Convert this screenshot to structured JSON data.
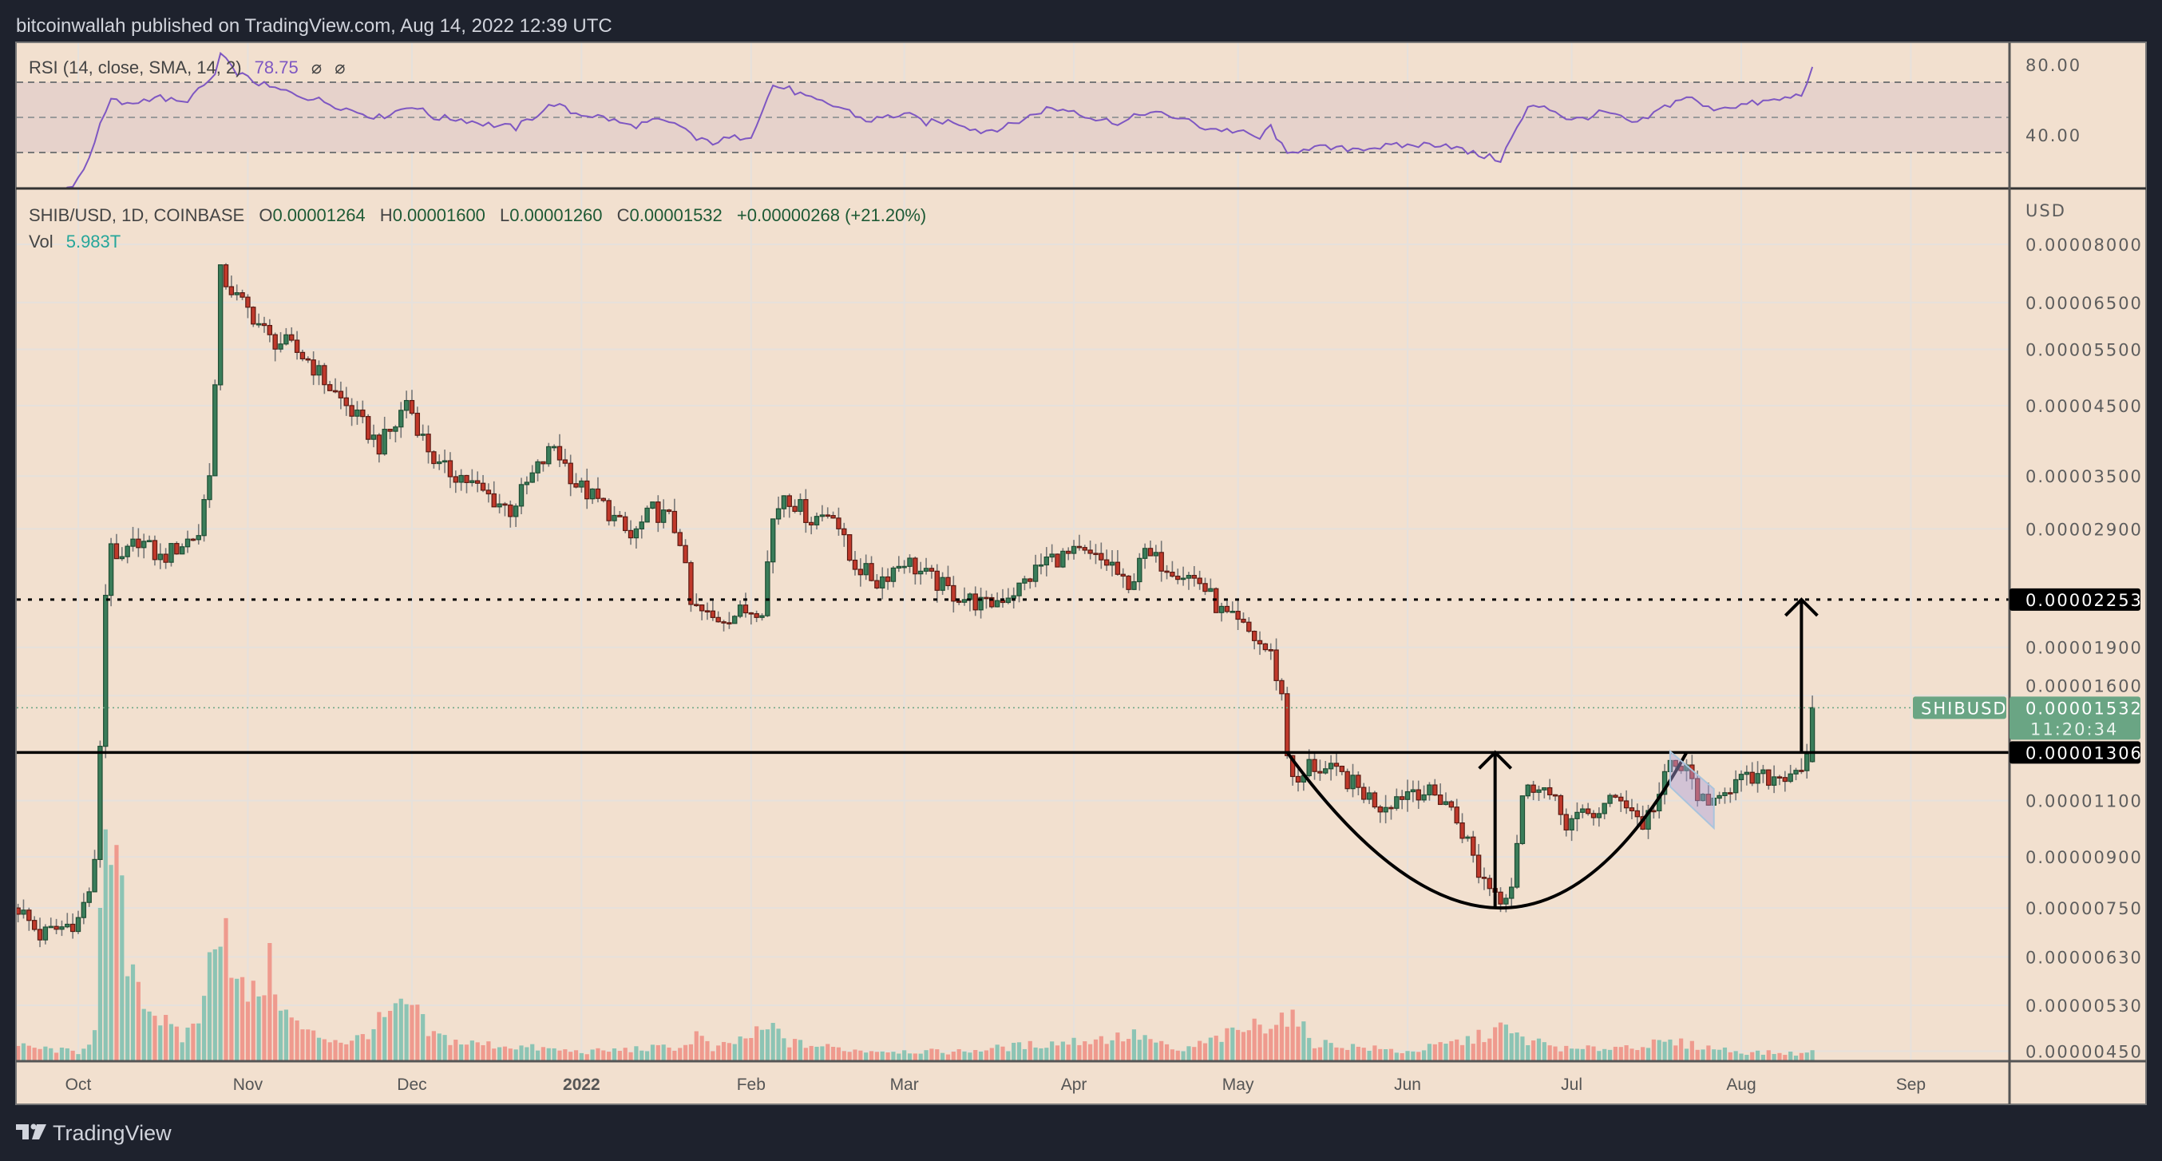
{
  "header": {
    "published": "bitcoinwallah published on TradingView.com, Aug 14, 2022 12:39 UTC"
  },
  "footer": {
    "brand": "TradingView"
  },
  "rsi": {
    "label": "RSI (14, close, SMA, 14, 2)",
    "value": "78.75",
    "extra1": "⌀",
    "extra2": "⌀",
    "ticks": [
      "80.00",
      "40.00"
    ],
    "tick_values": [
      80,
      40
    ],
    "bands": [
      70,
      50,
      30
    ],
    "line_color": "#7e57c2",
    "anchors": [
      [
        "2021-09-27",
        5
      ],
      [
        "2021-09-30",
        12
      ],
      [
        "2021-10-02",
        20
      ],
      [
        "2021-10-05",
        45
      ],
      [
        "2021-10-07",
        60
      ],
      [
        "2021-10-10",
        57
      ],
      [
        "2021-10-15",
        62
      ],
      [
        "2021-10-20",
        58
      ],
      [
        "2021-10-23",
        65
      ],
      [
        "2021-10-26",
        74
      ],
      [
        "2021-10-27",
        86
      ],
      [
        "2021-10-29",
        78
      ],
      [
        "2021-11-01",
        72
      ],
      [
        "2021-11-05",
        67
      ],
      [
        "2021-11-10",
        63
      ],
      [
        "2021-11-15",
        59
      ],
      [
        "2021-11-20",
        54
      ],
      [
        "2021-11-25",
        50
      ],
      [
        "2021-12-01",
        57
      ],
      [
        "2021-12-05",
        50
      ],
      [
        "2021-12-10",
        49
      ],
      [
        "2021-12-15",
        46
      ],
      [
        "2021-12-20",
        44
      ],
      [
        "2021-12-27",
        58
      ],
      [
        "2021-12-30",
        53
      ],
      [
        "2022-01-05",
        50
      ],
      [
        "2022-01-10",
        45
      ],
      [
        "2022-01-15",
        48
      ],
      [
        "2022-01-20",
        44
      ],
      [
        "2022-01-22",
        37
      ],
      [
        "2022-01-25",
        36
      ],
      [
        "2022-02-01",
        40
      ],
      [
        "2022-02-05",
        68
      ],
      [
        "2022-02-08",
        66
      ],
      [
        "2022-02-12",
        60
      ],
      [
        "2022-02-18",
        55
      ],
      [
        "2022-02-22",
        48
      ],
      [
        "2022-03-01",
        52
      ],
      [
        "2022-03-05",
        47
      ],
      [
        "2022-03-10",
        48
      ],
      [
        "2022-03-15",
        42
      ],
      [
        "2022-03-20",
        45
      ],
      [
        "2022-03-27",
        55
      ],
      [
        "2022-04-01",
        54
      ],
      [
        "2022-04-05",
        49
      ],
      [
        "2022-04-10",
        47
      ],
      [
        "2022-04-14",
        53
      ],
      [
        "2022-04-20",
        50
      ],
      [
        "2022-04-25",
        44
      ],
      [
        "2022-05-01",
        42
      ],
      [
        "2022-05-05",
        38
      ],
      [
        "2022-05-07",
        45
      ],
      [
        "2022-05-10",
        28
      ],
      [
        "2022-05-13",
        33
      ],
      [
        "2022-05-20",
        32
      ],
      [
        "2022-06-01",
        34
      ],
      [
        "2022-06-08",
        35
      ],
      [
        "2022-06-12",
        30
      ],
      [
        "2022-06-18",
        26
      ],
      [
        "2022-06-20",
        38
      ],
      [
        "2022-06-23",
        55
      ],
      [
        "2022-06-26",
        57
      ],
      [
        "2022-07-01",
        48
      ],
      [
        "2022-07-07",
        53
      ],
      [
        "2022-07-13",
        46
      ],
      [
        "2022-07-18",
        56
      ],
      [
        "2022-07-22",
        62
      ],
      [
        "2022-07-26",
        55
      ],
      [
        "2022-08-01",
        57
      ],
      [
        "2022-08-08",
        60
      ],
      [
        "2022-08-12",
        63
      ],
      [
        "2022-08-14",
        78.75
      ]
    ]
  },
  "legend": {
    "symbol": "SHIB/USD, 1D, COINBASE",
    "open_label": "O",
    "open": "0.00001264",
    "high_label": "H",
    "high": "0.00001600",
    "low_label": "L",
    "low": "0.00001260",
    "close_label": "C",
    "close": "0.00001532",
    "change": "+0.00000268 (+21.20%)",
    "vol_label": "Vol",
    "vol": "5.983T"
  },
  "price_axis": {
    "currency": "USD",
    "ticks": [
      "0.00008000",
      "0.00006500",
      "0.00005500",
      "0.00004500",
      "0.00003500",
      "0.00002900",
      "0.00001900",
      "0.00001600",
      "0.00001100",
      "0.00000900",
      "0.00000750",
      "0.00000630",
      "0.00000530",
      "0.00000450"
    ],
    "level_upper": "0.00002253",
    "level_lower": "0.00001306",
    "last_price": "0.00001532",
    "countdown": "11:20:34",
    "symbol_tag": "SHIBUSD"
  },
  "time_axis": {
    "months": [
      [
        "2021-10-01",
        "Oct"
      ],
      [
        "2021-11-01",
        "Nov"
      ],
      [
        "2021-12-01",
        "Dec"
      ],
      [
        "2022-01-01",
        "2022"
      ],
      [
        "2022-02-01",
        "Feb"
      ],
      [
        "2022-03-01",
        "Mar"
      ],
      [
        "2022-04-01",
        "Apr"
      ],
      [
        "2022-05-01",
        "May"
      ],
      [
        "2022-06-01",
        "Jun"
      ],
      [
        "2022-07-01",
        "Jul"
      ],
      [
        "2022-08-01",
        "Aug"
      ],
      [
        "2022-09-01",
        "Sep"
      ]
    ]
  },
  "colors": {
    "background": "#f2e0cf",
    "frame": "#1e222d",
    "up": "#3a7d5a",
    "up_border": "#1e4d33",
    "down": "#c0392b",
    "down_border": "#5a1a12",
    "vol_up": "#8cc4b4",
    "vol_down": "#ef9a8e",
    "last_price": "#6aa584",
    "rsi_band": "#e6d2cb"
  },
  "chart_data": {
    "type": "candlestick",
    "title": "SHIB/USD, 1D, COINBASE",
    "ylabel": "USD",
    "yscale": "log",
    "ylim": [
      4.2e-06,
      9.2e-05
    ],
    "xlim": [
      "2021-09-20",
      "2022-09-14"
    ],
    "close_anchors": [
      [
        "2021-09-20",
        7.5e-06
      ],
      [
        "2021-09-24",
        6.8e-06
      ],
      [
        "2021-09-28",
        7e-06
      ],
      [
        "2021-10-01",
        7.2e-06
      ],
      [
        "2021-10-03",
        8e-06
      ],
      [
        "2021-10-04",
        8.7e-06
      ],
      [
        "2021-10-05",
        1.35e-05
      ],
      [
        "2021-10-06",
        2.3e-05
      ],
      [
        "2021-10-07",
        2.8e-05
      ],
      [
        "2021-10-08",
        2.52e-05
      ],
      [
        "2021-10-12",
        2.8e-05
      ],
      [
        "2021-10-16",
        2.6e-05
      ],
      [
        "2021-10-20",
        2.75e-05
      ],
      [
        "2021-10-23",
        2.85e-05
      ],
      [
        "2021-10-25",
        3.6e-05
      ],
      [
        "2021-10-26",
        4.8e-05
      ],
      [
        "2021-10-27",
        7.2e-05
      ],
      [
        "2021-10-28",
        7e-05
      ],
      [
        "2021-10-30",
        6.6e-05
      ],
      [
        "2021-11-02",
        6.2e-05
      ],
      [
        "2021-11-05",
        5.7e-05
      ],
      [
        "2021-11-08",
        5.6e-05
      ],
      [
        "2021-11-12",
        5.3e-05
      ],
      [
        "2021-11-16",
        4.8e-05
      ],
      [
        "2021-11-20",
        4.4e-05
      ],
      [
        "2021-11-25",
        3.9e-05
      ],
      [
        "2021-11-28",
        4.2e-05
      ],
      [
        "2021-11-30",
        4.6e-05
      ],
      [
        "2021-12-03",
        4e-05
      ],
      [
        "2021-12-06",
        3.6e-05
      ],
      [
        "2021-12-10",
        3.5e-05
      ],
      [
        "2021-12-14",
        3.3e-05
      ],
      [
        "2021-12-19",
        3.1e-05
      ],
      [
        "2021-12-23",
        3.5e-05
      ],
      [
        "2021-12-27",
        3.9e-05
      ],
      [
        "2021-12-31",
        3.4e-05
      ],
      [
        "2022-01-05",
        3.15e-05
      ],
      [
        "2022-01-10",
        2.8e-05
      ],
      [
        "2022-01-14",
        3.1e-05
      ],
      [
        "2022-01-17",
        3e-05
      ],
      [
        "2022-01-19",
        2.8e-05
      ],
      [
        "2022-01-21",
        2.2e-05
      ],
      [
        "2022-01-25",
        2.1e-05
      ],
      [
        "2022-01-30",
        2.15e-05
      ],
      [
        "2022-02-03",
        2.2e-05
      ],
      [
        "2022-02-05",
        3e-05
      ],
      [
        "2022-02-07",
        3.3e-05
      ],
      [
        "2022-02-12",
        3e-05
      ],
      [
        "2022-02-16",
        3.1e-05
      ],
      [
        "2022-02-19",
        2.6e-05
      ],
      [
        "2022-02-24",
        2.4e-05
      ],
      [
        "2022-03-01",
        2.6e-05
      ],
      [
        "2022-03-05",
        2.45e-05
      ],
      [
        "2022-03-10",
        2.3e-05
      ],
      [
        "2022-03-16",
        2.2e-05
      ],
      [
        "2022-03-22",
        2.35e-05
      ],
      [
        "2022-03-27",
        2.6e-05
      ],
      [
        "2022-04-02",
        2.65e-05
      ],
      [
        "2022-04-08",
        2.55e-05
      ],
      [
        "2022-04-11",
        2.3e-05
      ],
      [
        "2022-04-13",
        2.65e-05
      ],
      [
        "2022-04-18",
        2.55e-05
      ],
      [
        "2022-04-24",
        2.4e-05
      ],
      [
        "2022-04-28",
        2.15e-05
      ],
      [
        "2022-05-03",
        2e-05
      ],
      [
        "2022-05-07",
        1.85e-05
      ],
      [
        "2022-05-09",
        1.6e-05
      ],
      [
        "2022-05-10",
        1.3e-05
      ],
      [
        "2022-05-12",
        1.15e-05
      ],
      [
        "2022-05-14",
        1.25e-05
      ],
      [
        "2022-05-20",
        1.2e-05
      ],
      [
        "2022-05-27",
        1.08e-05
      ],
      [
        "2022-06-02",
        1.15e-05
      ],
      [
        "2022-06-08",
        1.1e-05
      ],
      [
        "2022-06-12",
        9.5e-06
      ],
      [
        "2022-06-14",
        8.5e-06
      ],
      [
        "2022-06-18",
        7.8e-06
      ],
      [
        "2022-06-20",
        8.2e-06
      ],
      [
        "2022-06-22",
        1.12e-05
      ],
      [
        "2022-06-25",
        1.18e-05
      ],
      [
        "2022-06-30",
        1.02e-05
      ],
      [
        "2022-07-05",
        1.05e-05
      ],
      [
        "2022-07-10",
        1.12e-05
      ],
      [
        "2022-07-14",
        1.01e-05
      ],
      [
        "2022-07-17",
        1.12e-05
      ],
      [
        "2022-07-19",
        1.25e-05
      ],
      [
        "2022-07-22",
        1.22e-05
      ],
      [
        "2022-07-26",
        1.05e-05
      ],
      [
        "2022-07-28",
        1.15e-05
      ],
      [
        "2022-08-02",
        1.18e-05
      ],
      [
        "2022-08-08",
        1.2e-05
      ],
      [
        "2022-08-13",
        1.26e-05
      ]
    ],
    "last_candle": {
      "date": "2022-08-14",
      "open": 1.264e-05,
      "high": 1.6e-05,
      "low": 1.26e-05,
      "close": 1.532e-05
    },
    "volume_T_anchors": [
      [
        "2021-09-20",
        8
      ],
      [
        "2021-10-01",
        5
      ],
      [
        "2021-10-04",
        15
      ],
      [
        "2021-10-05",
        67
      ],
      [
        "2021-10-06",
        100
      ],
      [
        "2021-10-07",
        118
      ],
      [
        "2021-10-08",
        100
      ],
      [
        "2021-10-10",
        60
      ],
      [
        "2021-10-14",
        30
      ],
      [
        "2021-10-17",
        20
      ],
      [
        "2021-10-20",
        12
      ],
      [
        "2021-10-24",
        30
      ],
      [
        "2021-10-26",
        80
      ],
      [
        "2021-10-28",
        80
      ],
      [
        "2021-10-30",
        40
      ],
      [
        "2021-11-02",
        35
      ],
      [
        "2021-11-05",
        50
      ],
      [
        "2021-11-06",
        45
      ],
      [
        "2021-11-08",
        25
      ],
      [
        "2021-11-12",
        15
      ],
      [
        "2021-11-20",
        10
      ],
      [
        "2021-11-27",
        25
      ],
      [
        "2021-12-01",
        30
      ],
      [
        "2021-12-04",
        15
      ],
      [
        "2021-12-10",
        10
      ],
      [
        "2021-12-20",
        8
      ],
      [
        "2022-01-01",
        5
      ],
      [
        "2022-01-20",
        8
      ],
      [
        "2022-01-22",
        15
      ],
      [
        "2022-01-25",
        6
      ],
      [
        "2022-02-05",
        18
      ],
      [
        "2022-02-08",
        10
      ],
      [
        "2022-02-20",
        6
      ],
      [
        "2022-03-10",
        5
      ],
      [
        "2022-04-13",
        14
      ],
      [
        "2022-04-20",
        5
      ],
      [
        "2022-05-10",
        25
      ],
      [
        "2022-05-12",
        20
      ],
      [
        "2022-05-15",
        10
      ],
      [
        "2022-06-01",
        5
      ],
      [
        "2022-06-13",
        12
      ],
      [
        "2022-06-18",
        18
      ],
      [
        "2022-06-22",
        12
      ],
      [
        "2022-07-01",
        6
      ],
      [
        "2022-07-20",
        10
      ],
      [
        "2022-08-01",
        5
      ],
      [
        "2022-08-13",
        4
      ],
      [
        "2022-08-14",
        5.983
      ]
    ],
    "drawings": {
      "resistance_target": 2.253e-05,
      "neckline": 1.306e-05,
      "cup_arc": {
        "start": [
          "2022-05-10",
          1.306e-05
        ],
        "bottom": [
          "2022-06-18",
          7.5e-06
        ],
        "end": [
          "2022-07-22",
          1.306e-05
        ]
      },
      "arrows": [
        {
          "date": "2022-06-17",
          "from": 7.5e-06,
          "to": 1.306e-05
        },
        {
          "date": "2022-08-12",
          "from": 1.306e-05,
          "to": 2.253e-05
        }
      ],
      "flag": [
        [
          "2022-07-19",
          1.311e-05
        ],
        [
          "2022-07-27",
          1.147e-05
        ],
        [
          "2022-07-27",
          9.97e-06
        ],
        [
          "2022-07-19",
          1.156e-05
        ]
      ]
    }
  }
}
